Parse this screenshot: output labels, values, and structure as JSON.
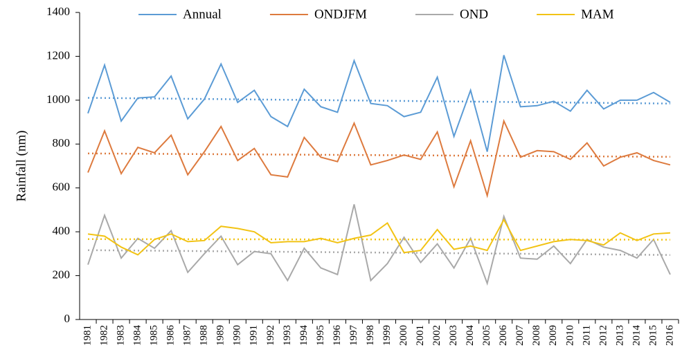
{
  "chart_data": {
    "type": "line",
    "y_label": "Rainfall (nm)",
    "categories": [
      "1981",
      "1982",
      "1983",
      "1984",
      "1985",
      "1986",
      "1987",
      "1988",
      "1989",
      "1990",
      "1991",
      "1992",
      "1993",
      "1994",
      "1995",
      "1996",
      "1997",
      "1998",
      "1999",
      "2000",
      "2001",
      "2002",
      "2003",
      "2004",
      "2005",
      "2006",
      "2007",
      "2008",
      "2009",
      "2010",
      "2011",
      "2012",
      "2013",
      "2014",
      "2015",
      "2016"
    ],
    "series": [
      {
        "name": "Annual",
        "color": "#5b9bd5",
        "values": [
          940,
          1160,
          905,
          1010,
          1015,
          1110,
          915,
          1005,
          1165,
          990,
          1045,
          925,
          880,
          1050,
          970,
          945,
          1180,
          985,
          975,
          925,
          945,
          1105,
          835,
          1045,
          765,
          1205,
          970,
          975,
          995,
          950,
          1045,
          960,
          1000,
          1000,
          1035,
          990
        ]
      },
      {
        "name": "ONDJFM",
        "color": "#dd7a3e",
        "values": [
          670,
          860,
          665,
          785,
          760,
          840,
          660,
          765,
          880,
          725,
          780,
          660,
          650,
          830,
          740,
          720,
          895,
          705,
          725,
          750,
          730,
          855,
          605,
          815,
          565,
          905,
          740,
          770,
          765,
          730,
          805,
          700,
          740,
          760,
          725,
          705
        ]
      },
      {
        "name": "OND",
        "color": "#a9a9a9",
        "values": [
          250,
          475,
          280,
          370,
          325,
          405,
          215,
          300,
          380,
          250,
          310,
          300,
          178,
          325,
          235,
          205,
          525,
          178,
          255,
          375,
          260,
          345,
          235,
          370,
          165,
          470,
          280,
          275,
          335,
          255,
          365,
          330,
          315,
          280,
          365,
          205
        ]
      },
      {
        "name": "MAM",
        "color": "#f2c314",
        "values": [
          390,
          380,
          330,
          295,
          365,
          390,
          355,
          360,
          425,
          415,
          400,
          350,
          355,
          355,
          370,
          350,
          370,
          385,
          440,
          305,
          315,
          410,
          320,
          335,
          315,
          455,
          315,
          335,
          355,
          365,
          360,
          340,
          395,
          360,
          390,
          395
        ]
      }
    ],
    "ylim": [
      0,
      1400
    ],
    "yticks": [
      0,
      200,
      400,
      600,
      800,
      1000,
      1200,
      1400
    ],
    "trendline": true,
    "legend": "top",
    "grid": false
  }
}
